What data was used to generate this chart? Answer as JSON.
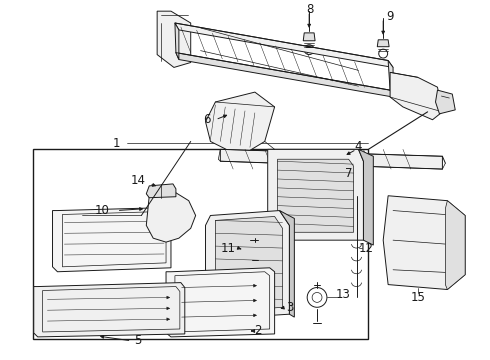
{
  "bg_color": "#ffffff",
  "line_color": "#1a1a1a",
  "fill_light": "#f0f0f0",
  "fill_mid": "#e0e0e0",
  "fill_dark": "#c8c8c8",
  "font_size": 8.5
}
